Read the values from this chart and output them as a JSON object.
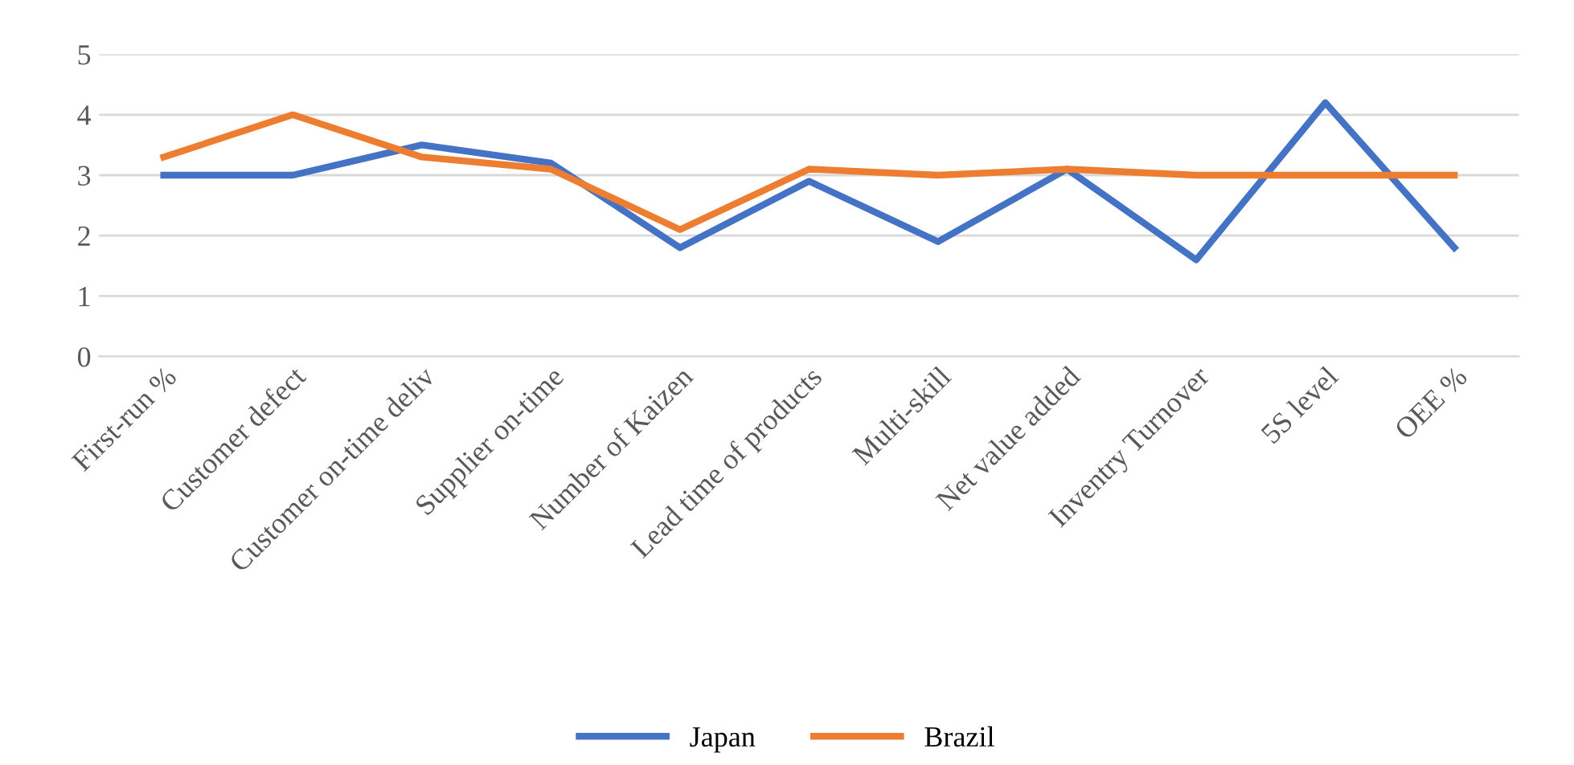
{
  "chart_data": {
    "type": "line",
    "categories": [
      "First-run %",
      "Customer defect",
      "Customer on-time deliv",
      "Supplier on-time",
      "Number of Kaizen",
      "Lead time of products",
      "Multi-skill",
      "Net value added",
      "Inventry Turnover",
      "5S level",
      "OEE %"
    ],
    "series": [
      {
        "name": "Japan",
        "color": "#4472c4",
        "values": [
          3.0,
          3.0,
          3.5,
          3.2,
          1.8,
          2.9,
          1.9,
          3.1,
          1.6,
          4.2,
          1.8
        ]
      },
      {
        "name": "Brazil",
        "color": "#ed7d31",
        "values": [
          3.3,
          4.0,
          3.3,
          3.1,
          2.1,
          3.1,
          3.0,
          3.1,
          3.0,
          3.0,
          3.0
        ]
      }
    ],
    "ylim": [
      0,
      5
    ],
    "yticks": [
      0,
      1,
      2,
      3,
      4,
      5
    ],
    "grid": "y",
    "legend": "bottom",
    "marker": "none",
    "line_style": "solid"
  }
}
